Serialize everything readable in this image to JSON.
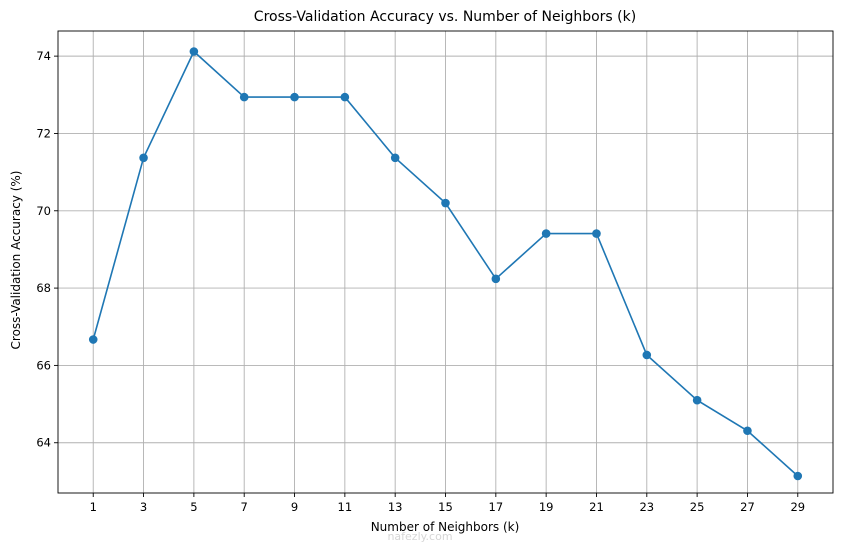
{
  "chart_data": {
    "type": "line",
    "title": "Cross-Validation Accuracy vs. Number of Neighbors (k)",
    "xlabel": "Number of Neighbors (k)",
    "ylabel": "Cross-Validation Accuracy (%)",
    "x": [
      1,
      3,
      5,
      7,
      9,
      11,
      13,
      15,
      17,
      19,
      21,
      23,
      25,
      27,
      29
    ],
    "series": [
      {
        "values": [
          66.67,
          71.37,
          74.12,
          72.94,
          72.94,
          72.94,
          71.37,
          70.2,
          68.24,
          69.41,
          69.41,
          66.27,
          65.1,
          64.31,
          63.14
        ],
        "color": "#1f77b4",
        "marker": "circle"
      }
    ],
    "xticks": [
      1,
      3,
      5,
      7,
      9,
      11,
      13,
      15,
      17,
      19,
      21,
      23,
      25,
      27,
      29
    ],
    "yticks": [
      64,
      66,
      68,
      70,
      72,
      74
    ],
    "xlim": [
      -0.4,
      30.4
    ],
    "ylim": [
      62.7,
      74.65
    ],
    "grid": true
  },
  "watermark": "nafezly.com"
}
